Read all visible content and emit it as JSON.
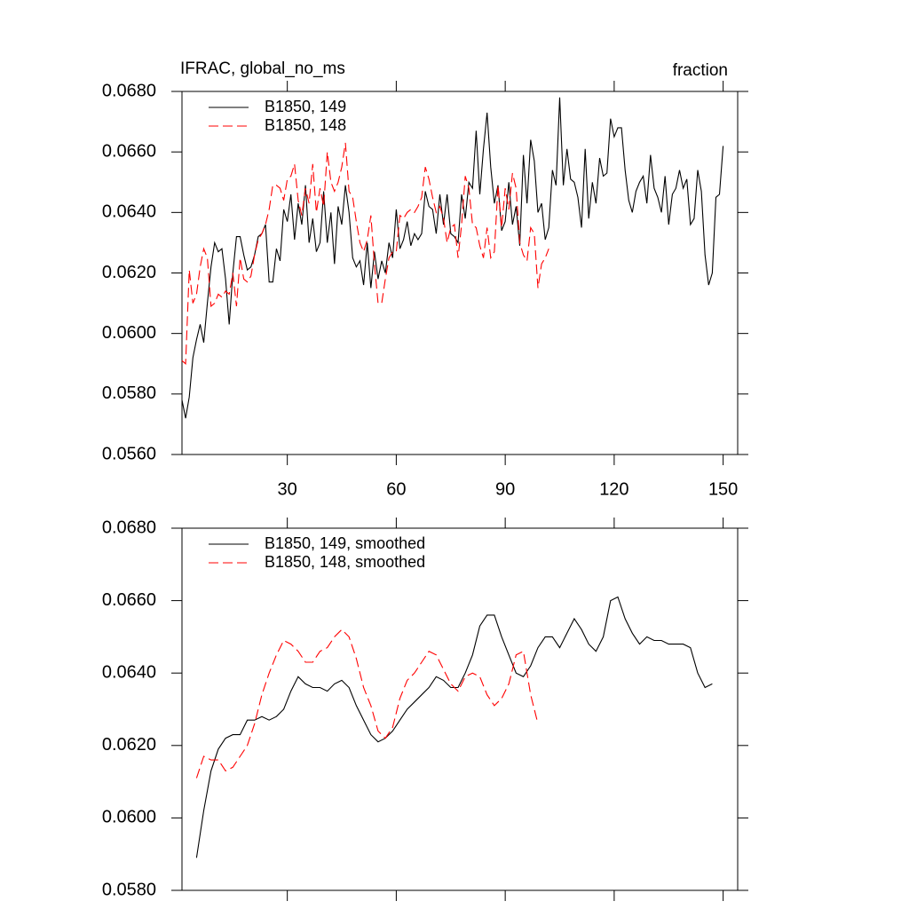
{
  "chart_data": [
    {
      "type": "line",
      "title": "IFRAC, global_no_ms",
      "subtitle": "fraction",
      "x": [
        1,
        2,
        3,
        4,
        5,
        6,
        7,
        8,
        9,
        10,
        11,
        12,
        13,
        14,
        15,
        16,
        17,
        18,
        19,
        20,
        21,
        22,
        23,
        24,
        25,
        26,
        27,
        28,
        29,
        30,
        31,
        32,
        33,
        34,
        35,
        36,
        37,
        38,
        39,
        40,
        41,
        42,
        43,
        44,
        45,
        46,
        47,
        48,
        49,
        50,
        51,
        52,
        53,
        54,
        55,
        56,
        57,
        58,
        59,
        60,
        61,
        62,
        63,
        64,
        65,
        66,
        67,
        68,
        69,
        70,
        71,
        72,
        73,
        74,
        75,
        76,
        77,
        78,
        79,
        80,
        81,
        82,
        83,
        84,
        85,
        86,
        87,
        88,
        89,
        90,
        91,
        92,
        93,
        94,
        95,
        96,
        97,
        98,
        99,
        100,
        101,
        102,
        103,
        104,
        105,
        106,
        107,
        108,
        109,
        110,
        111,
        112,
        113,
        114,
        115,
        116,
        117,
        118,
        119,
        120,
        121,
        122,
        123,
        124,
        125,
        126,
        127,
        128,
        129,
        130,
        131,
        132,
        133,
        134,
        135,
        136,
        137,
        138,
        139,
        140,
        141,
        142,
        143,
        144,
        145,
        146,
        147,
        148,
        149,
        150
      ],
      "series": [
        {
          "name": "B1850, 149",
          "color": "#000000",
          "dashed": false,
          "values": [
            0.0578,
            0.0572,
            0.0579,
            0.0592,
            0.0598,
            0.0603,
            0.0597,
            0.061,
            0.0622,
            0.063,
            0.0627,
            0.0628,
            0.0618,
            0.0603,
            0.062,
            0.0632,
            0.0632,
            0.0626,
            0.0621,
            0.0622,
            0.0626,
            0.0632,
            0.0633,
            0.0636,
            0.0617,
            0.0617,
            0.0628,
            0.0624,
            0.0641,
            0.0637,
            0.0646,
            0.0631,
            0.0643,
            0.0636,
            0.0649,
            0.063,
            0.0638,
            0.0627,
            0.063,
            0.0647,
            0.063,
            0.064,
            0.0623,
            0.0642,
            0.0636,
            0.0649,
            0.064,
            0.0625,
            0.0622,
            0.0624,
            0.0616,
            0.063,
            0.0615,
            0.0627,
            0.0618,
            0.0624,
            0.062,
            0.063,
            0.0625,
            0.0641,
            0.0628,
            0.0631,
            0.0637,
            0.0629,
            0.0633,
            0.0631,
            0.0633,
            0.0647,
            0.0642,
            0.0641,
            0.0633,
            0.0646,
            0.0636,
            0.0646,
            0.0633,
            0.0632,
            0.063,
            0.0646,
            0.0638,
            0.065,
            0.0648,
            0.0667,
            0.0646,
            0.0661,
            0.0673,
            0.0655,
            0.0643,
            0.0649,
            0.0634,
            0.0637,
            0.065,
            0.0636,
            0.0642,
            0.0629,
            0.0659,
            0.0643,
            0.0664,
            0.0657,
            0.064,
            0.0643,
            0.0631,
            0.0635,
            0.0654,
            0.0649,
            0.0678,
            0.0649,
            0.0661,
            0.0651,
            0.065,
            0.0645,
            0.0635,
            0.0661,
            0.0638,
            0.065,
            0.0643,
            0.0658,
            0.0652,
            0.0653,
            0.0671,
            0.0665,
            0.0668,
            0.0668,
            0.0654,
            0.0644,
            0.064,
            0.0647,
            0.065,
            0.0652,
            0.0643,
            0.0659,
            0.0648,
            0.0645,
            0.064,
            0.0652,
            0.0636,
            0.0646,
            0.0648,
            0.0654,
            0.0648,
            0.0651,
            0.0636,
            0.0638,
            0.0654,
            0.0647,
            0.0626,
            0.0616,
            0.062,
            0.0645,
            0.0646,
            0.0662
          ]
        },
        {
          "name": "B1850, 148",
          "color": "#ff0000",
          "dashed": true,
          "values": [
            0.0591,
            0.059,
            0.0621,
            0.061,
            0.0613,
            0.0622,
            0.0628,
            0.0625,
            0.0609,
            0.061,
            0.0613,
            0.0612,
            0.0614,
            0.0613,
            0.062,
            0.0609,
            0.0625,
            0.0618,
            0.0617,
            0.0619,
            0.0626,
            0.0631,
            0.0633,
            0.0636,
            0.0641,
            0.0649,
            0.0649,
            0.0648,
            0.0644,
            0.0651,
            0.0652,
            0.0656,
            0.0644,
            0.0639,
            0.0648,
            0.0643,
            0.0656,
            0.064,
            0.0648,
            0.0642,
            0.066,
            0.065,
            0.0647,
            0.065,
            0.0655,
            0.0663,
            0.0647,
            0.0645,
            0.0637,
            0.063,
            0.0627,
            0.0631,
            0.0639,
            0.0623,
            0.061,
            0.061,
            0.0618,
            0.0625,
            0.0627,
            0.0627,
            0.0639,
            0.0638,
            0.064,
            0.0641,
            0.064,
            0.0642,
            0.0645,
            0.0655,
            0.0651,
            0.0645,
            0.064,
            0.0642,
            0.0638,
            0.063,
            0.0635,
            0.0636,
            0.0625,
            0.0636,
            0.0652,
            0.0648,
            0.0636,
            0.0635,
            0.0629,
            0.0625,
            0.0635,
            0.0625,
            0.0627,
            0.0649,
            0.0635,
            0.0648,
            0.0641,
            0.0653,
            0.0648,
            0.063,
            0.0626,
            0.0624,
            0.0635,
            0.0633,
            0.0615,
            0.0623,
            0.0625,
            0.0628,
            null,
            null,
            null,
            null,
            null,
            null,
            null,
            null,
            null,
            null,
            null,
            null,
            null,
            null,
            null,
            null,
            null,
            null,
            null,
            null,
            null,
            null,
            null,
            null,
            null,
            null,
            null,
            null,
            null,
            null,
            null,
            null,
            null,
            null,
            null,
            null,
            null,
            null,
            null,
            null,
            null,
            null,
            null,
            null,
            null,
            null,
            null,
            null
          ]
        }
      ],
      "xlim": [
        1,
        154
      ],
      "xticks": [
        30,
        60,
        90,
        120,
        150
      ],
      "show_xtick_labels": true,
      "ylim": [
        0.056,
        0.068
      ],
      "yticks": [
        {
          "value": 0.056,
          "label": "0.0560"
        },
        {
          "value": 0.058,
          "label": "0.0580"
        },
        {
          "value": 0.06,
          "label": "0.0600"
        },
        {
          "value": 0.062,
          "label": "0.0620"
        },
        {
          "value": 0.064,
          "label": "0.0640"
        },
        {
          "value": 0.066,
          "label": "0.0660"
        },
        {
          "value": 0.068,
          "label": "0.0680"
        }
      ],
      "legend": "upper left",
      "grid": false
    },
    {
      "type": "line",
      "x": [
        5,
        7,
        9,
        11,
        13,
        15,
        17,
        19,
        21,
        23,
        25,
        27,
        29,
        31,
        33,
        35,
        37,
        39,
        41,
        43,
        45,
        47,
        49,
        51,
        53,
        55,
        57,
        59,
        61,
        63,
        65,
        67,
        69,
        71,
        73,
        75,
        77,
        79,
        81,
        83,
        85,
        87,
        89,
        91,
        93,
        95,
        97,
        99,
        101,
        103,
        105,
        107,
        109,
        111,
        113,
        115,
        117,
        119,
        121,
        123,
        125,
        127,
        129,
        131,
        133,
        135,
        137,
        139,
        141,
        143,
        145,
        147
      ],
      "series": [
        {
          "name": "B1850, 149, smoothed",
          "color": "#000000",
          "dashed": false,
          "values": [
            0.0589,
            0.0602,
            0.0613,
            0.0619,
            0.0622,
            0.0623,
            0.0623,
            0.0627,
            0.0627,
            0.0628,
            0.0627,
            0.0628,
            0.063,
            0.0635,
            0.0639,
            0.0637,
            0.0636,
            0.0636,
            0.0635,
            0.0637,
            0.0638,
            0.0636,
            0.0631,
            0.0627,
            0.0623,
            0.0621,
            0.0622,
            0.0624,
            0.0627,
            0.063,
            0.0632,
            0.0634,
            0.0636,
            0.0639,
            0.0638,
            0.0636,
            0.0636,
            0.064,
            0.0645,
            0.0653,
            0.0656,
            0.0656,
            0.065,
            0.0645,
            0.064,
            0.0639,
            0.0642,
            0.0647,
            0.065,
            0.065,
            0.0647,
            0.0651,
            0.0655,
            0.0652,
            0.0648,
            0.0646,
            0.065,
            0.066,
            0.0661,
            0.0655,
            0.0651,
            0.0648,
            0.065,
            0.0649,
            0.0649,
            0.0648,
            0.0648,
            0.0648,
            0.0647,
            0.064,
            0.0636,
            0.0637
          ]
        },
        {
          "name": "B1850, 148, smoothed",
          "color": "#ff0000",
          "dashed": true,
          "values": [
            0.0611,
            0.0617,
            0.0616,
            0.0616,
            0.0613,
            0.0614,
            0.0617,
            0.062,
            0.0626,
            0.0634,
            0.064,
            0.0645,
            0.0649,
            0.0648,
            0.0646,
            0.0643,
            0.0643,
            0.0646,
            0.0647,
            0.065,
            0.0652,
            0.065,
            0.0644,
            0.0636,
            0.0631,
            0.0624,
            0.0622,
            0.0625,
            0.0633,
            0.0638,
            0.064,
            0.0643,
            0.0646,
            0.0645,
            0.0641,
            0.0637,
            0.0635,
            0.0639,
            0.064,
            0.0639,
            0.0634,
            0.0631,
            0.0633,
            0.0637,
            0.0645,
            0.0646,
            0.0634,
            0.0626,
            null,
            null,
            null,
            null,
            null,
            null,
            null,
            null,
            null,
            null,
            null,
            null,
            null,
            null,
            null,
            null,
            null,
            null,
            null,
            null,
            null,
            null,
            null,
            null
          ]
        }
      ],
      "xlim": [
        1,
        154
      ],
      "xticks": [
        30,
        60,
        90,
        120,
        150
      ],
      "show_xtick_labels": false,
      "ylim": [
        0.058,
        0.068
      ],
      "yticks": [
        {
          "value": 0.058,
          "label": "0.0580"
        },
        {
          "value": 0.06,
          "label": "0.0600"
        },
        {
          "value": 0.062,
          "label": "0.0620"
        },
        {
          "value": 0.064,
          "label": "0.0640"
        },
        {
          "value": 0.066,
          "label": "0.0660"
        },
        {
          "value": 0.068,
          "label": "0.0680"
        }
      ],
      "legend": "upper left",
      "grid": false
    }
  ]
}
